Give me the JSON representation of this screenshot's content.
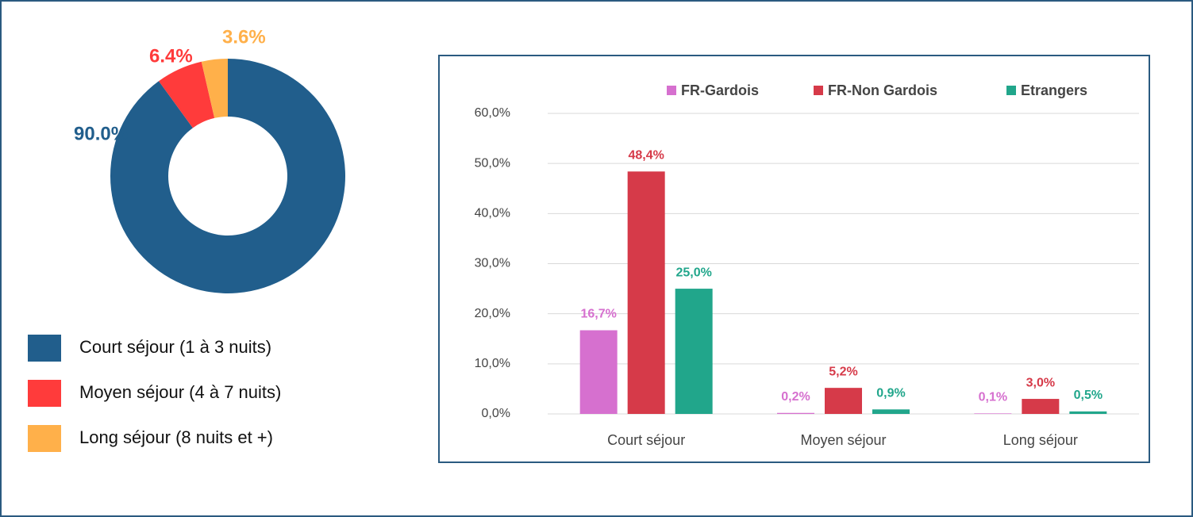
{
  "chart_data": [
    {
      "type": "donut",
      "categories": [
        "Court séjour (1 à 3 nuits)",
        "Moyen séjour (4 à 7 nuits)",
        "Long séjour (8 nuits et +)"
      ],
      "values": [
        90.0,
        6.4,
        3.6
      ],
      "value_labels": [
        "90.0%",
        "6.4%",
        "3.6%"
      ],
      "colors": [
        "#215e8c",
        "#ff3b3b",
        "#ffb04a"
      ]
    },
    {
      "type": "bar",
      "categories": [
        "Court séjour",
        "Moyen séjour",
        "Long séjour"
      ],
      "series": [
        {
          "name": "FR-Gardois",
          "color": "#d670cf",
          "values": [
            16.7,
            0.2,
            0.1
          ],
          "value_labels": [
            "16,7%",
            "0,2%",
            "0,1%"
          ]
        },
        {
          "name": "FR-Non Gardois",
          "color": "#d63a49",
          "values": [
            48.4,
            5.2,
            3.0
          ],
          "value_labels": [
            "48,4%",
            "5,2%",
            "3,0%"
          ]
        },
        {
          "name": "Etrangers",
          "color": "#21a68b",
          "values": [
            25.0,
            0.9,
            0.5
          ],
          "value_labels": [
            "25,0%",
            "0,9%",
            "0,5%"
          ]
        }
      ],
      "ylim": [
        0,
        60
      ],
      "yticks": [
        {
          "value": 0,
          "label": "0,0%"
        },
        {
          "value": 10,
          "label": "10,0%"
        },
        {
          "value": 20,
          "label": "20,0%"
        },
        {
          "value": 30,
          "label": "30,0%"
        },
        {
          "value": 40,
          "label": "40,0%"
        },
        {
          "value": 50,
          "label": "50,0%"
        },
        {
          "value": 60,
          "label": "60,0%"
        }
      ],
      "grid": true,
      "legend": "top"
    }
  ]
}
